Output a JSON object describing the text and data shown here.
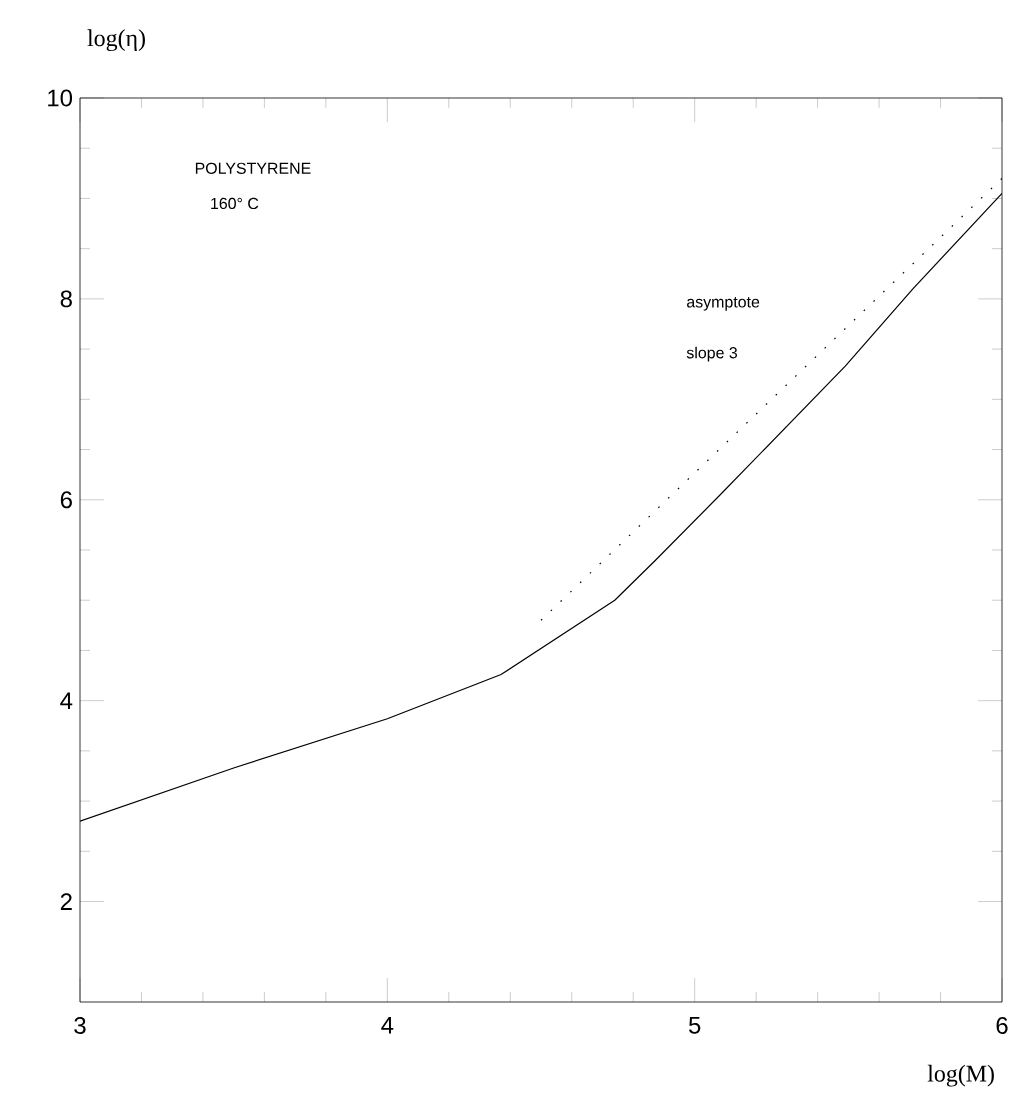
{
  "chart_data": {
    "type": "line",
    "xlabel": "log(M)",
    "ylabel": "log(η)",
    "annotations": [
      "POLYSTYRENE",
      "160° C",
      "asymptote",
      "slope 3"
    ],
    "series": [
      {
        "color": "#000000",
        "line_style": "solid",
        "x": [
          3.0,
          3.5,
          4.0,
          4.37,
          4.74,
          4.87,
          5.08,
          5.49,
          5.71,
          6.0
        ],
        "values": [
          2.8,
          3.33,
          3.82,
          4.26,
          5.0,
          5.39,
          6.04,
          7.33,
          8.1,
          9.05
        ]
      },
      {
        "color": "#000000",
        "line_style": "dotted",
        "x": [
          4.5,
          6.0
        ],
        "values": [
          4.8,
          9.2
        ]
      }
    ],
    "xlim": [
      3,
      6
    ],
    "ylim": [
      1,
      10
    ],
    "xticks": [
      3,
      4,
      5,
      6
    ],
    "yticks": [
      2,
      4,
      6,
      8,
      10
    ],
    "grid": false,
    "legend": false,
    "marker": "none"
  }
}
